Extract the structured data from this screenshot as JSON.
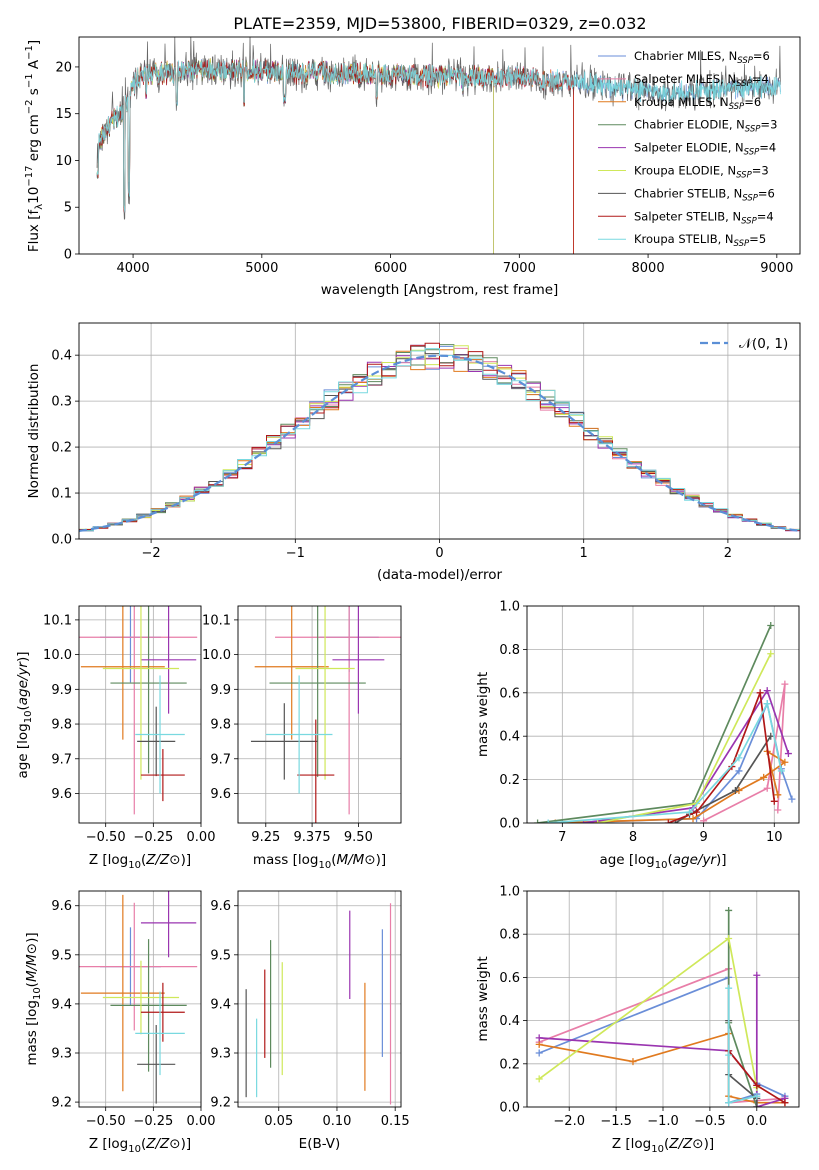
{
  "title": "PLATE=2359, MJD=53800, FIBERID=0329, z=0.032",
  "colors": [
    "#6a8ed8",
    "#e87ea8",
    "#e07a1f",
    "#5e8a5e",
    "#9a35b0",
    "#cfe85a",
    "#555555",
    "#b01818",
    "#79d9e0"
  ],
  "chart_data": [
    {
      "id": "spectrum",
      "type": "line",
      "xlabel": "wavelength [Angstrom, rest frame]",
      "ylabel": "Flux [f_λ 10^-17 erg cm^-2 s^-1 A^-1]",
      "ylabel_parts": {
        "a": "Flux [f",
        "b": "λ",
        "c": "10",
        "d": "−17",
        "e": " erg cm",
        "f": "−2",
        "g": " s",
        "h": "−1",
        "i": " A",
        "j": "−1",
        "k": "]"
      },
      "xlim": [
        3580,
        9180
      ],
      "ylim": [
        0,
        23.2
      ],
      "xticks": [
        4000,
        5000,
        6000,
        7000,
        8000,
        9000
      ],
      "yticks": [
        0,
        5,
        10,
        15,
        20
      ],
      "grid": false,
      "legend_position": "top-right",
      "series": [
        {
          "name": "Chabrier MILES",
          "nssp": "6",
          "cut_at": 9030
        },
        {
          "name": "Salpeter MILES",
          "nssp": "4",
          "cut_at": 7420
        },
        {
          "name": "Kroupa MILES",
          "nssp": "6",
          "cut_at": 7420
        },
        {
          "name": "Chabrier ELODIE",
          "nssp": "3",
          "cut_at": 6800
        },
        {
          "name": "Salpeter ELODIE",
          "nssp": "4",
          "cut_at": 6800
        },
        {
          "name": "Kroupa ELODIE",
          "nssp": "3",
          "cut_at": 6800
        },
        {
          "name": "Chabrier STELIB",
          "nssp": "6",
          "cut_at": 9030
        },
        {
          "name": "Salpeter STELIB",
          "nssp": "4",
          "cut_at": 7420
        },
        {
          "name": "Kroupa STELIB",
          "nssp": "5",
          "cut_at": 9030
        }
      ],
      "continuum": {
        "x": [
          3720,
          3800,
          3900,
          3960,
          4020,
          4100,
          4300,
          4500,
          4700,
          5000,
          5200,
          5500,
          5900,
          6300,
          6700,
          7000,
          7200,
          7500,
          7800,
          8200,
          8600,
          8950
        ],
        "y": [
          11.5,
          13.5,
          15,
          16.5,
          18.5,
          19.2,
          19.4,
          19.6,
          19.6,
          19.6,
          19.3,
          19.4,
          19.2,
          19.0,
          18.9,
          19.0,
          18.5,
          18.5,
          17.6,
          17.2,
          17.6,
          17.9
        ]
      }
    },
    {
      "id": "residuals",
      "type": "step",
      "xlabel": "(data-model)/error",
      "ylabel": "Normed distribution",
      "xlim": [
        -2.5,
        2.5
      ],
      "ylim": [
        0,
        0.47
      ],
      "xticks": [
        -2,
        -1,
        0,
        1,
        2
      ],
      "xtick_labels": [
        "−2",
        "−1",
        "0",
        "1",
        "2"
      ],
      "yticks": [
        0.0,
        0.1,
        0.2,
        0.3,
        0.4
      ],
      "ytick_labels": [
        "0.0",
        "0.1",
        "0.2",
        "0.3",
        "0.4"
      ],
      "grid": true,
      "bin_width": 0.1,
      "legend_position": "top-right",
      "reference_label": "𝒩(0, 1)"
    },
    {
      "id": "age-vs-Z",
      "type": "errorbar",
      "xlabel": "Z [log10(Z/Z⊙)]",
      "ylabel": "age [log10(age/yr)]",
      "xlim": [
        -0.64,
        0.0
      ],
      "ylim": [
        9.515,
        10.14
      ],
      "xticks": [
        -0.5,
        -0.25,
        0.0
      ],
      "xtick_labels": [
        "−0.50",
        "−0.25",
        "0.00"
      ],
      "yticks": [
        9.6,
        9.7,
        9.8,
        9.9,
        10.0,
        10.1
      ],
      "ytick_labels": [
        "9.6",
        "9.7",
        "9.8",
        "9.9",
        "10.0",
        "10.1"
      ],
      "grid": true,
      "points": [
        {
          "x": -0.37,
          "xerr": 0.16,
          "y": 10.05,
          "yerr": 0.13
        },
        {
          "x": -0.35,
          "xerr": 0.33,
          "y": 10.05,
          "yerr": 0.51
        },
        {
          "x": -0.41,
          "xerr": 0.22,
          "y": 9.965,
          "yerr": 0.21
        },
        {
          "x": -0.275,
          "xerr": 0.2,
          "y": 9.918,
          "yerr": 0.26
        },
        {
          "x": -0.17,
          "xerr": 0.145,
          "y": 9.985,
          "yerr": 0.155
        },
        {
          "x": -0.315,
          "xerr": 0.2,
          "y": 9.96,
          "yerr": 0.32
        },
        {
          "x": -0.235,
          "xerr": 0.1,
          "y": 9.75,
          "yerr": 0.1
        },
        {
          "x": -0.2,
          "xerr": 0.115,
          "y": 9.653,
          "yerr": 0.075
        },
        {
          "x": -0.215,
          "xerr": 0.13,
          "y": 9.77,
          "yerr": 0.17
        }
      ]
    },
    {
      "id": "age-vs-mass",
      "type": "errorbar",
      "xlabel": "mass [log10(M/M⊙)]",
      "ylabel": "",
      "xlim": [
        9.175,
        9.615
      ],
      "ylim": [
        9.515,
        10.14
      ],
      "xticks": [
        9.25,
        9.375,
        9.5
      ],
      "xtick_labels": [
        "9.25",
        "9.375",
        "9.50"
      ],
      "yticks": [
        9.6,
        9.7,
        9.8,
        9.9,
        10.0,
        10.1
      ],
      "ytick_labels": [
        "9.6",
        "9.7",
        "9.8",
        "9.9",
        "10.0",
        "10.1"
      ],
      "grid": true,
      "points": [
        {
          "x": 9.475,
          "xerr": 0.08,
          "y": 10.05,
          "yerr": 0.1
        },
        {
          "x": 9.475,
          "xerr": 0.2,
          "y": 10.05,
          "yerr": 0.51
        },
        {
          "x": 9.32,
          "xerr": 0.1,
          "y": 9.965,
          "yerr": 0.21
        },
        {
          "x": 9.39,
          "xerr": 0.13,
          "y": 9.918,
          "yerr": 0.27
        },
        {
          "x": 9.5,
          "xerr": 0.07,
          "y": 9.985,
          "yerr": 0.155
        },
        {
          "x": 9.41,
          "xerr": 0.08,
          "y": 9.96,
          "yerr": 0.32
        },
        {
          "x": 9.3,
          "xerr": 0.09,
          "y": 9.75,
          "yerr": 0.11
        },
        {
          "x": 9.385,
          "xerr": 0.05,
          "y": 9.653,
          "yerr": 0.16
        },
        {
          "x": 9.34,
          "xerr": 0.09,
          "y": 9.77,
          "yerr": 0.17
        }
      ]
    },
    {
      "id": "weight-vs-age",
      "type": "line",
      "xlabel": "age [log10(age/yr)]",
      "ylabel": "mass weight",
      "xlim": [
        6.5,
        10.35
      ],
      "ylim": [
        0,
        1.0
      ],
      "xticks": [
        7,
        8,
        9,
        10
      ],
      "xtick_labels": [
        "7",
        "8",
        "9",
        "10"
      ],
      "yticks": [
        0,
        0.2,
        0.4,
        0.6,
        0.8,
        1.0
      ],
      "ytick_labels": [
        "0.0",
        "0.2",
        "0.4",
        "0.6",
        "0.8",
        "1.0"
      ],
      "grid": true,
      "series": [
        {
          "x": [
            7.0,
            8.9,
            9.5,
            9.9,
            10.1,
            10.25
          ],
          "y": [
            0.0,
            0.02,
            0.24,
            0.55,
            0.25,
            0.11
          ]
        },
        {
          "x": [
            9.0,
            9.9,
            10.15,
            10.05
          ],
          "y": [
            0.01,
            0.16,
            0.64,
            0.06
          ]
        },
        {
          "x": [
            6.9,
            8.85,
            9.5,
            9.85,
            10.15,
            9.9,
            10.05
          ],
          "y": [
            0.0,
            0.02,
            0.15,
            0.21,
            0.28,
            0.33,
            0.13
          ]
        },
        {
          "x": [
            6.65,
            8.85,
            9.95
          ],
          "y": [
            0.0,
            0.09,
            0.91
          ]
        },
        {
          "x": [
            7.3,
            8.85,
            9.9,
            10.2
          ],
          "y": [
            0.0,
            0.07,
            0.61,
            0.32
          ]
        },
        {
          "x": [
            7.5,
            8.9,
            9.95
          ],
          "y": [
            0.0,
            0.09,
            0.78
          ]
        },
        {
          "x": [
            8.6,
            8.8,
            9.45,
            9.95
          ],
          "y": [
            0.0,
            0.04,
            0.15,
            0.4
          ]
        },
        {
          "x": [
            8.5,
            8.9,
            9.4,
            9.8,
            10.0
          ],
          "y": [
            0.0,
            0.05,
            0.26,
            0.6,
            0.1
          ]
        },
        {
          "x": [
            6.8,
            8.8,
            9.5,
            9.9,
            10.1
          ],
          "y": [
            0.0,
            0.05,
            0.3,
            0.55,
            0.24
          ]
        }
      ]
    },
    {
      "id": "mass-vs-Z",
      "type": "errorbar",
      "xlabel": "Z [log10(Z/Z⊙)]",
      "ylabel": "mass [log10(M/M⊙)]",
      "xlim": [
        -0.64,
        0.0
      ],
      "ylim": [
        9.19,
        9.63
      ],
      "xticks": [
        -0.5,
        -0.25,
        0.0
      ],
      "xtick_labels": [
        "−0.50",
        "−0.25",
        "0.00"
      ],
      "yticks": [
        9.2,
        9.3,
        9.4,
        9.5,
        9.6
      ],
      "ytick_labels": [
        "9.2",
        "9.3",
        "9.4",
        "9.5",
        "9.6"
      ],
      "grid": true,
      "points": [
        {
          "x": -0.37,
          "xerr": 0.16,
          "y": 9.476,
          "yerr": 0.08
        },
        {
          "x": -0.35,
          "xerr": 0.33,
          "y": 9.476,
          "yerr": 0.13
        },
        {
          "x": -0.41,
          "xerr": 0.22,
          "y": 9.422,
          "yerr": 0.2
        },
        {
          "x": -0.275,
          "xerr": 0.2,
          "y": 9.397,
          "yerr": 0.135
        },
        {
          "x": -0.17,
          "xerr": 0.145,
          "y": 9.565,
          "yerr": 0.07
        },
        {
          "x": -0.315,
          "xerr": 0.2,
          "y": 9.413,
          "yerr": 0.075
        },
        {
          "x": -0.235,
          "xerr": 0.1,
          "y": 9.277,
          "yerr": 0.08
        },
        {
          "x": -0.2,
          "xerr": 0.115,
          "y": 9.383,
          "yerr": 0.06
        },
        {
          "x": -0.215,
          "xerr": 0.13,
          "y": 9.34,
          "yerr": 0.085
        }
      ]
    },
    {
      "id": "mass-vs-EBV",
      "type": "errorbar",
      "xlabel": "E(B-V)",
      "ylabel": "",
      "xlim": [
        0.015,
        0.155
      ],
      "ylim": [
        9.19,
        9.63
      ],
      "xticks": [
        0.05,
        0.1,
        0.15
      ],
      "xtick_labels": [
        "0.05",
        "0.10",
        "0.15"
      ],
      "yticks": [
        9.2,
        9.3,
        9.4,
        9.5,
        9.6
      ],
      "ytick_labels": [
        "9.2",
        "9.3",
        "9.4",
        "9.5",
        "9.6"
      ],
      "grid": true,
      "points": [
        {
          "x": 0.139,
          "y": 9.422,
          "yerr": 0.13
        },
        {
          "x": 0.146,
          "y": 9.4,
          "yerr": 0.205
        },
        {
          "x": 0.124,
          "y": 9.333,
          "yerr": 0.11
        },
        {
          "x": 0.043,
          "y": 9.4,
          "yerr": 0.13
        },
        {
          "x": 0.111,
          "y": 9.5,
          "yerr": 0.09
        },
        {
          "x": 0.053,
          "y": 9.37,
          "yerr": 0.115
        },
        {
          "x": 0.022,
          "y": 9.32,
          "yerr": 0.11
        },
        {
          "x": 0.038,
          "y": 9.38,
          "yerr": 0.09
        },
        {
          "x": 0.031,
          "y": 9.29,
          "yerr": 0.08
        }
      ]
    },
    {
      "id": "weight-vs-Z",
      "type": "line",
      "xlabel": "Z [log10(Z/Z⊙)]",
      "ylabel": "mass weight",
      "xlim": [
        -2.45,
        0.45
      ],
      "ylim": [
        0,
        1.0
      ],
      "xticks": [
        -2.0,
        -1.5,
        -1.0,
        -0.5,
        0.0
      ],
      "xtick_labels": [
        "−2.0",
        "−1.5",
        "−1.0",
        "−0.5",
        "0.0"
      ],
      "yticks": [
        0,
        0.2,
        0.4,
        0.6,
        0.8,
        1.0
      ],
      "ytick_labels": [
        "0.0",
        "0.2",
        "0.4",
        "0.6",
        "0.8",
        "1.0"
      ],
      "grid": true,
      "series": [
        {
          "x": [
            -2.32,
            -0.3,
            -0.3,
            0.0,
            0.0,
            0.3
          ],
          "y": [
            0.25,
            0.6,
            0.02,
            0.06,
            0.11,
            0.05
          ]
        },
        {
          "x": [
            -2.32,
            -0.3,
            -0.3,
            0.3
          ],
          "y": [
            0.3,
            0.64,
            0.02,
            0.04
          ]
        },
        {
          "x": [
            -2.32,
            -1.32,
            -0.3,
            -0.3,
            0.0,
            0.3
          ],
          "y": [
            0.29,
            0.21,
            0.34,
            0.05,
            0.02,
            0.02
          ]
        },
        {
          "x": [
            -0.3,
            -0.3,
            0.0
          ],
          "y": [
            0.91,
            0.39,
            0.0
          ]
        },
        {
          "x": [
            -2.32,
            -0.3,
            0.0,
            0.0,
            0.0,
            0.3
          ],
          "y": [
            0.32,
            0.26,
            0.1,
            0.61,
            0.0,
            0.04
          ]
        },
        {
          "x": [
            -2.32,
            -0.3,
            0.0
          ],
          "y": [
            0.13,
            0.78,
            0.09
          ]
        },
        {
          "x": [
            -0.3,
            -0.3,
            0.0,
            0.0
          ],
          "y": [
            0.4,
            0.15,
            0.04,
            0.0
          ]
        },
        {
          "x": [
            -0.3,
            0.0,
            0.3
          ],
          "y": [
            0.26,
            0.1,
            0.02
          ]
        },
        {
          "x": [
            -0.3,
            -0.3,
            -0.3,
            0.0
          ],
          "y": [
            0.55,
            0.24,
            0.02,
            0.05
          ]
        }
      ]
    }
  ]
}
